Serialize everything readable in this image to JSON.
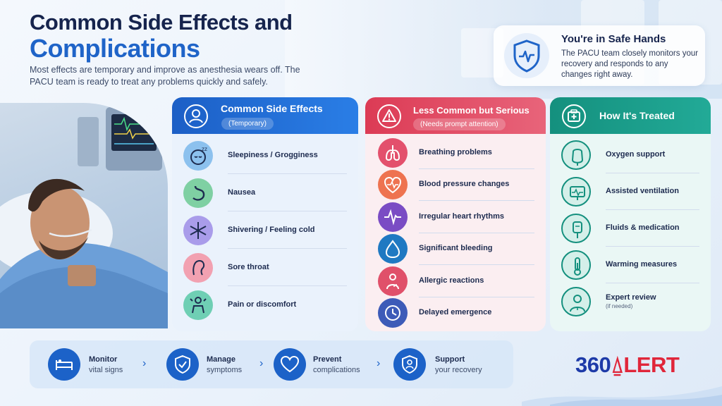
{
  "title_line1": "Common Side Effects and",
  "title_line2": "Complications",
  "intro": "Most effects are temporary and improve as anesthesia wears off. The PACU team is ready to treat any problems quickly and safely.",
  "safe_card": {
    "title": "You're in Safe Hands",
    "text": "The PACU team closely monitors your recovery and responds to any changes right away.",
    "icon": "shield-heartbeat-icon"
  },
  "columns": [
    {
      "title": "Common Side Effects",
      "pill": "(Temporary)",
      "color": "#1c5fc6",
      "items": [
        {
          "label": "Sleepiness / Grogginess",
          "icon": "sleepy-face-icon",
          "color": "#8cc1ee"
        },
        {
          "label": "Nausea",
          "icon": "stomach-icon",
          "color": "#7fd0a3"
        },
        {
          "label": "Shivering / Feeling cold",
          "icon": "snowflake-icon",
          "color": "#a99cea"
        },
        {
          "label": "Sore throat",
          "icon": "throat-icon",
          "color": "#f2a1b1"
        },
        {
          "label": "Pain or discomfort",
          "icon": "pain-person-icon",
          "color": "#6fcfb4"
        }
      ]
    },
    {
      "title": "Less Common but Serious",
      "pill": "(Needs prompt attention)",
      "color": "#dc3b55",
      "items": [
        {
          "label": "Breathing problems",
          "icon": "lungs-icon",
          "color": "#e3506c"
        },
        {
          "label": "Blood pressure changes",
          "icon": "heart-pulse-icon",
          "color": "#ee7350"
        },
        {
          "label": "Irregular heart rhythms",
          "icon": "heartbeat-line-icon",
          "color": "#7a4cc4"
        },
        {
          "label": "Significant bleeding",
          "icon": "blood-drop-icon",
          "color": "#1f79c2"
        },
        {
          "label": "Allergic reactions",
          "icon": "allergy-person-icon",
          "color": "#e0506a"
        },
        {
          "label": "Delayed emergence",
          "icon": "clock-icon",
          "color": "#3d5bb8"
        }
      ]
    },
    {
      "title": "How It's Treated",
      "pill": "",
      "color": "#14907e",
      "items": [
        {
          "label": "Oxygen support",
          "sub": "",
          "icon": "oxygen-mask-icon"
        },
        {
          "label": "Assisted ventilation",
          "sub": "",
          "icon": "monitor-icon"
        },
        {
          "label": "Fluids & medication",
          "sub": "",
          "icon": "iv-bag-icon"
        },
        {
          "label": "Warming measures",
          "sub": "",
          "icon": "thermometer-icon"
        },
        {
          "label": "Expert review",
          "sub": "(if needed)",
          "icon": "doctor-icon"
        }
      ]
    }
  ],
  "steps": [
    {
      "t1": "Monitor",
      "t2": "vital signs",
      "icon": "bed-icon"
    },
    {
      "t1": "Manage",
      "t2": "symptoms",
      "icon": "shield-check-icon"
    },
    {
      "t1": "Prevent",
      "t2": "complications",
      "icon": "heart-icon"
    },
    {
      "t1": "Support",
      "t2": "your recovery",
      "icon": "user-shield-icon"
    }
  ],
  "logo": {
    "part1": "360",
    "part2": "LERT"
  }
}
